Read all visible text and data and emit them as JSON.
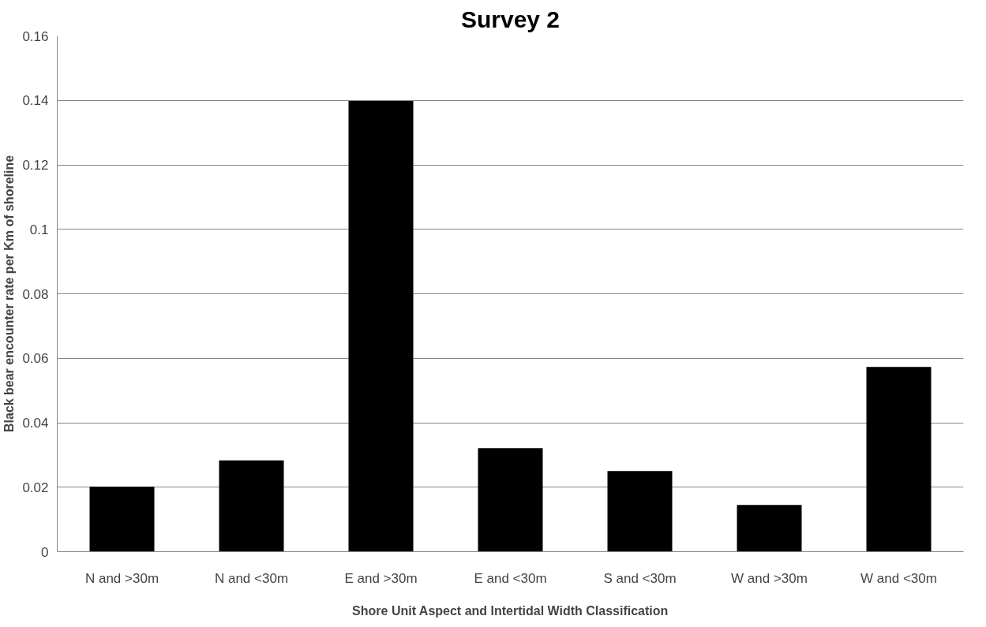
{
  "chart_data": {
    "type": "bar",
    "title": "Survey 2",
    "xlabel": "Shore Unit Aspect and Intertidal Width Classification",
    "ylabel": "Black bear encounter rate per Km of shoreline",
    "categories": [
      "N and >30m",
      "N and <30m",
      "E and >30m",
      "E and <30m",
      "S and <30m",
      "W and >30m",
      "W and <30m"
    ],
    "values": [
      0.0202,
      0.0283,
      0.1398,
      0.0321,
      0.025,
      0.0145,
      0.0573
    ],
    "color": "#000000",
    "ylim": [
      0,
      0.16
    ],
    "yticks": [
      0,
      0.02,
      0.04,
      0.06,
      0.08,
      0.1,
      0.12,
      0.14,
      0.16
    ],
    "grid": "y"
  }
}
